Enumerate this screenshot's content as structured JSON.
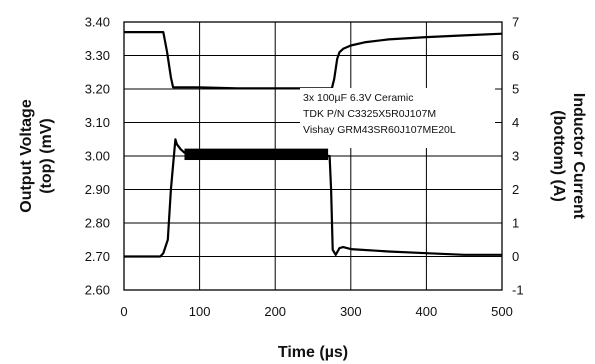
{
  "chart_data": {
    "type": "line",
    "xlabel": "Time (µs)",
    "ylabel_left": [
      "Output Voltage",
      "(top) (mV)"
    ],
    "ylabel_right": [
      "Inductor Current",
      "(bottom) (A)"
    ],
    "xlim": [
      0,
      500
    ],
    "ylim_left": [
      2.6,
      3.4
    ],
    "ylim_right": [
      -1,
      7
    ],
    "x_ticks": [
      "0",
      "100",
      "200",
      "300",
      "400",
      "500"
    ],
    "y_ticks_left": [
      "2.60",
      "2.70",
      "2.80",
      "2.90",
      "3.00",
      "3.10",
      "3.20",
      "3.30",
      "3.40"
    ],
    "y_ticks_right": [
      "-1",
      "0",
      "1",
      "2",
      "3",
      "4",
      "5",
      "6",
      "7"
    ],
    "grid": true,
    "annotation": [
      "3x 100µF 6.3V Ceramic",
      "TDK P/N C3325X5R0J107M",
      "Vishay GRM43SR60J107ME20L"
    ],
    "series": [
      {
        "axis": "right",
        "x": [
          0,
          48,
          52,
          57,
          62,
          65,
          70,
          80,
          100,
          150,
          200,
          240,
          275,
          278,
          282,
          285,
          290,
          300,
          320,
          350,
          400,
          450,
          500
        ],
        "y": [
          6.7,
          6.7,
          6.7,
          6.1,
          5.35,
          5.05,
          5.05,
          5.05,
          5.05,
          5.02,
          5.02,
          5.02,
          5.02,
          5.3,
          5.9,
          6.1,
          6.2,
          6.3,
          6.4,
          6.48,
          6.55,
          6.6,
          6.65
        ]
      },
      {
        "axis": "right",
        "x": [
          0,
          48,
          52,
          58,
          62,
          66,
          68,
          70,
          75,
          80,
          100,
          150,
          200,
          250,
          270,
          272,
          274,
          276,
          280,
          285,
          290,
          300,
          350,
          400,
          450,
          500
        ],
        "y": [
          0,
          0,
          0.1,
          0.5,
          2.0,
          3.0,
          3.5,
          3.35,
          3.2,
          3.1,
          3.05,
          3.05,
          3.0,
          3.0,
          3.0,
          3.0,
          2.0,
          0.2,
          0.05,
          0.25,
          0.28,
          0.22,
          0.15,
          0.1,
          0.05,
          0.05
        ]
      }
    ]
  }
}
